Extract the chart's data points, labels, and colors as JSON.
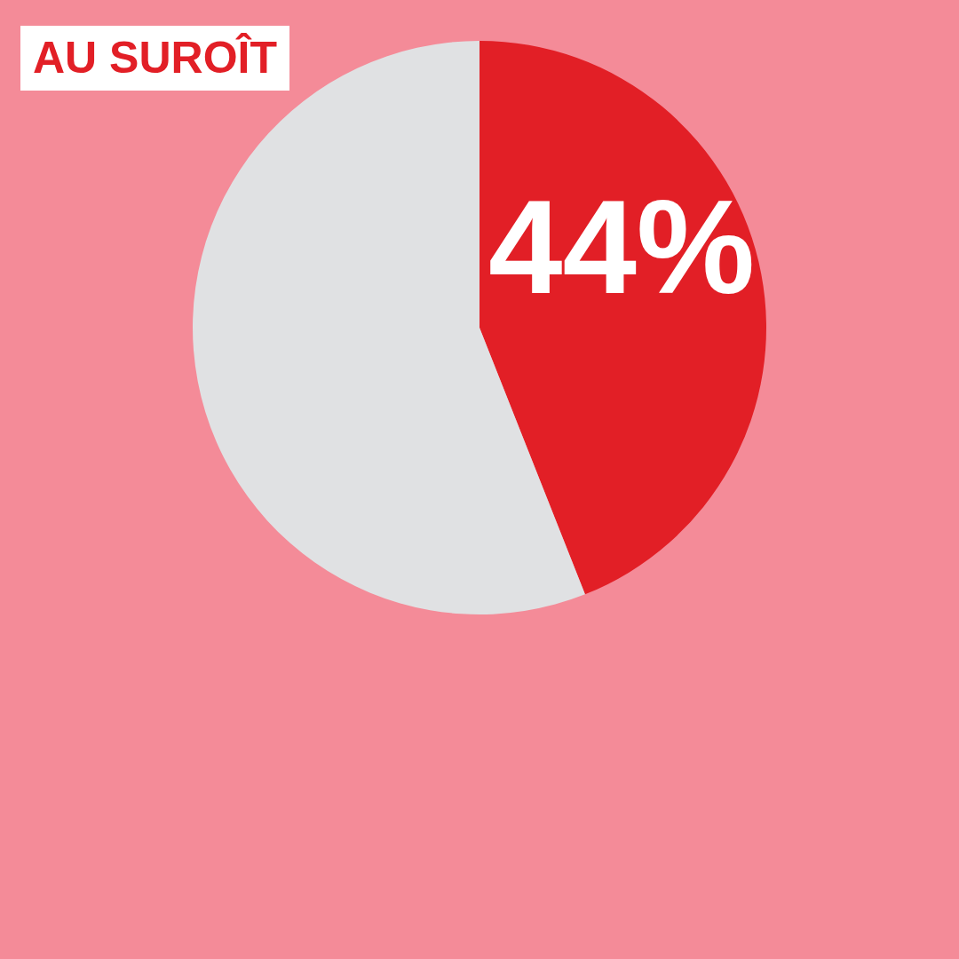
{
  "chart_data": {
    "type": "pie",
    "title": "AU SUROÎT",
    "categories": [
      null,
      null
    ],
    "values": [
      44,
      56
    ],
    "colors": [
      "#e21f26",
      "#e0e1e3"
    ],
    "value_labels": [
      "44%",
      null
    ]
  }
}
